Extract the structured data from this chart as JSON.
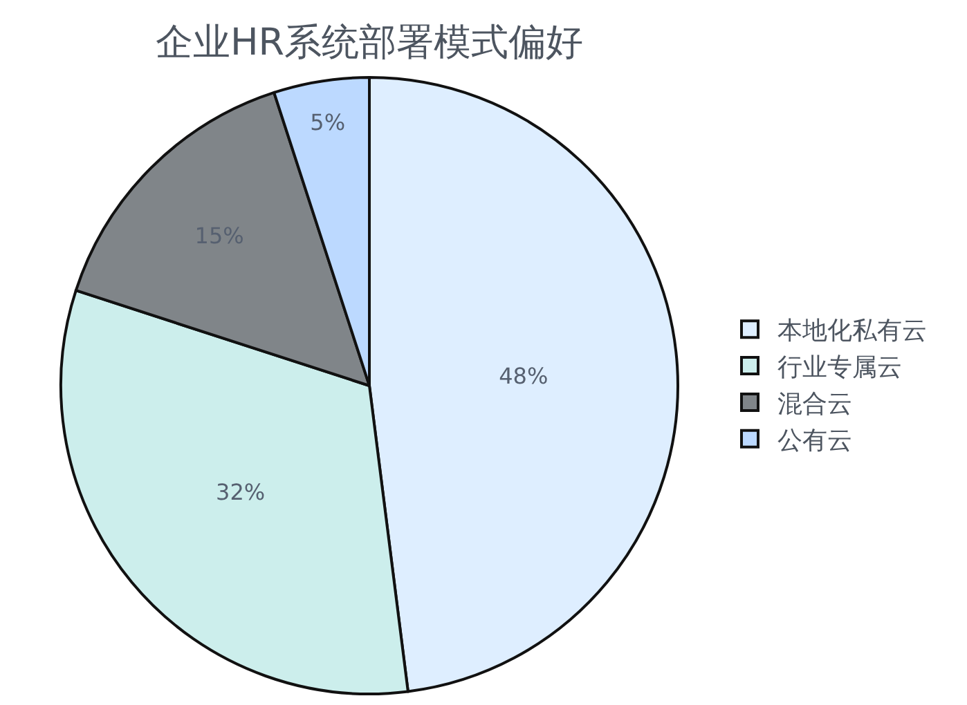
{
  "chart_data": {
    "type": "pie",
    "title": "企业HR系统部署模式偏好",
    "categories": [
      "本地化私有云",
      "行业专属云",
      "混合云",
      "公有云"
    ],
    "values": [
      48,
      32,
      15,
      5
    ],
    "value_labels": [
      "48%",
      "32%",
      "15%",
      "5%"
    ],
    "colors": [
      "#deeeff",
      "#cceeec",
      "#808589",
      "#bcd9ff"
    ],
    "legend": "right"
  }
}
